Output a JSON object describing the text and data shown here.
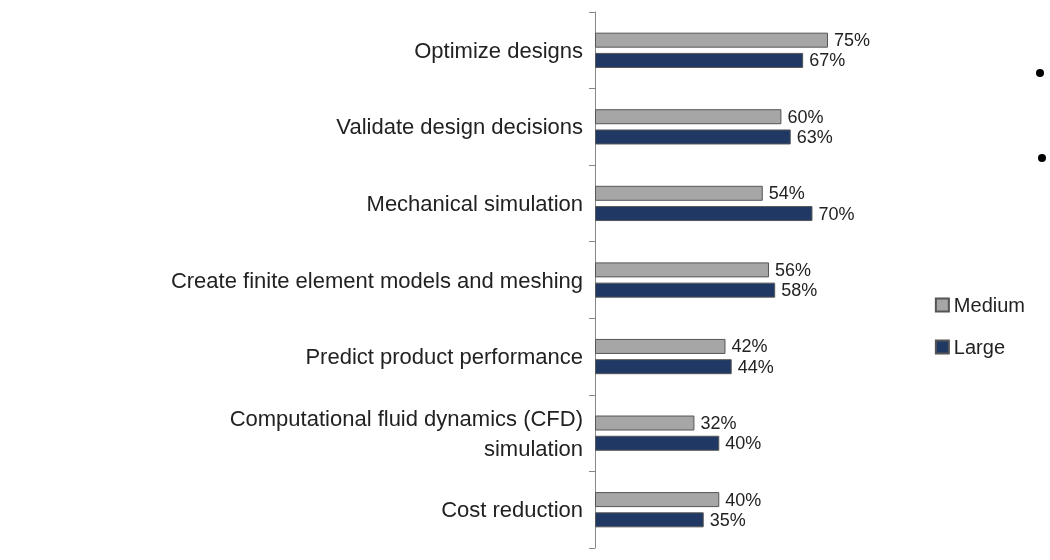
{
  "chart_data": {
    "type": "bar",
    "orientation": "horizontal",
    "categories": [
      "Optimize designs",
      "Validate design decisions",
      "Mechanical simulation",
      "Create finite element models and meshing",
      "Predict product performance",
      "Computational fluid dynamics (CFD)\nsimulation",
      "Cost reduction"
    ],
    "series": [
      {
        "name": "Medium",
        "color": "#a6a6a6",
        "values": [
          75,
          60,
          54,
          56,
          42,
          32,
          40
        ],
        "value_labels": [
          "75%",
          "60%",
          "54%",
          "56%",
          "42%",
          "32%",
          "40%"
        ]
      },
      {
        "name": "Large",
        "color": "#1f3864",
        "values": [
          67,
          63,
          70,
          58,
          44,
          40,
          35
        ],
        "value_labels": [
          "67%",
          "63%",
          "70%",
          "58%",
          "44%",
          "40%",
          "35%"
        ]
      }
    ],
    "legend": "right"
  }
}
